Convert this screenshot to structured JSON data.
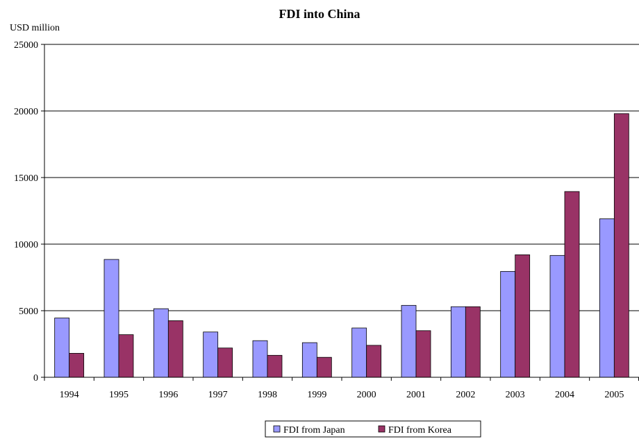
{
  "chart_data": {
    "type": "bar",
    "title": "FDI into China",
    "ylabel": "USD million",
    "xlabel": "",
    "ylim": [
      0,
      25000
    ],
    "yticks": [
      0,
      5000,
      10000,
      15000,
      20000,
      25000
    ],
    "grid": true,
    "legend_position": "bottom",
    "categories": [
      "1994",
      "1995",
      "1996",
      "1997",
      "1998",
      "1999",
      "2000",
      "2001",
      "2002",
      "2003",
      "2004",
      "2005"
    ],
    "series": [
      {
        "name": "FDI from Japan",
        "color": "#9999ff",
        "values": [
          4450,
          8850,
          5150,
          3400,
          2750,
          2600,
          3700,
          5400,
          5300,
          7950,
          9150,
          11900
        ]
      },
      {
        "name": "FDI from Korea",
        "color": "#993366",
        "values": [
          1800,
          3200,
          4250,
          2200,
          1650,
          1500,
          2400,
          3500,
          5300,
          9200,
          13950,
          19800
        ]
      }
    ]
  }
}
